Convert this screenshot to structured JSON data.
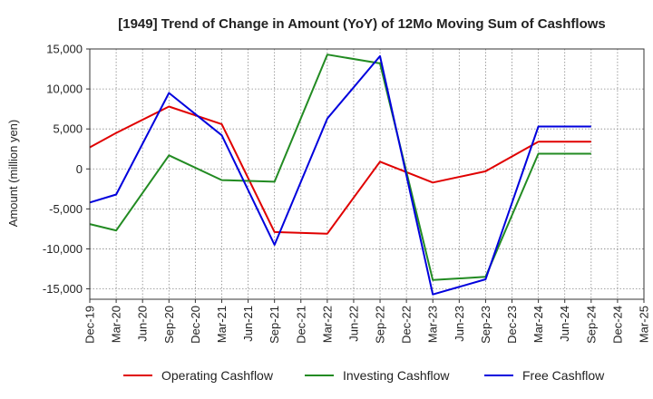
{
  "chart_data": {
    "type": "line",
    "title": "[1949]  Trend of Change in Amount (YoY) of 12Mo Moving Sum of Cashflows",
    "xlabel": "",
    "ylabel": "Amount (million yen)",
    "ylim": [
      -16300,
      15000
    ],
    "yticks": [
      15000,
      10000,
      5000,
      0,
      -5000,
      -10000,
      -15000
    ],
    "ytick_labels": [
      "15,000",
      "10,000",
      "5,000",
      "0",
      "-5,000",
      "-10,000",
      "-15,000"
    ],
    "categories": [
      "Dec-19",
      "Mar-20",
      "Jun-20",
      "Sep-20",
      "Dec-20",
      "Mar-21",
      "Jun-21",
      "Sep-21",
      "Dec-21",
      "Mar-22",
      "Jun-22",
      "Sep-22",
      "Dec-22",
      "Mar-23",
      "Jun-23",
      "Sep-23",
      "Dec-23",
      "Mar-24",
      "Jun-24",
      "Sep-24",
      "Dec-24",
      "Mar-25"
    ],
    "grid": true,
    "legend_position": "bottom",
    "series": [
      {
        "name": "Operating Cashflow",
        "color": "#e00000",
        "values": [
          2700,
          4500,
          null,
          7800,
          null,
          5600,
          null,
          -7900,
          null,
          -8100,
          null,
          900,
          null,
          -1700,
          null,
          -300,
          null,
          3400,
          null,
          3400,
          null,
          null
        ]
      },
      {
        "name": "Investing Cashflow",
        "color": "#228b22",
        "values": [
          -6900,
          -7700,
          null,
          1700,
          null,
          -1400,
          null,
          -1600,
          null,
          14300,
          null,
          13200,
          null,
          -13900,
          null,
          -13500,
          null,
          1900,
          null,
          1900,
          null,
          null
        ]
      },
      {
        "name": "Free Cashflow",
        "color": "#0000dd",
        "values": [
          -4200,
          -3200,
          null,
          9500,
          null,
          4200,
          null,
          -9500,
          null,
          6300,
          null,
          14100,
          null,
          -15700,
          null,
          -13800,
          null,
          5300,
          null,
          5300,
          null,
          null
        ]
      }
    ]
  }
}
